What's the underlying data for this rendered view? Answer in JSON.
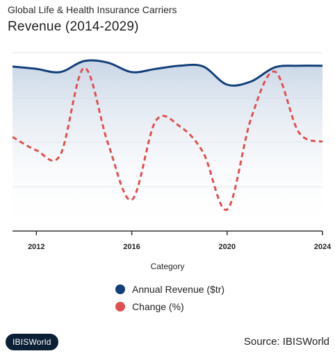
{
  "header": {
    "title": "Global Life & Health Insurance Carriers",
    "subtitle": "Revenue (2014-2029)"
  },
  "footer": {
    "logo_text": "IBISWorld",
    "source": "Source: IBISWorld"
  },
  "colors": {
    "revenue": "#123f7a",
    "change": "#e05050",
    "area_top": "#c9d6e6",
    "grid": "#dde3ea",
    "axis": "#333333"
  },
  "chart_data": {
    "type": "line",
    "title": "Revenue (2014-2029)",
    "xlabel": "Category",
    "ylabel": "",
    "xlim": [
      2011,
      2024
    ],
    "x_ticks": [
      "2012",
      "2016",
      "2020",
      "2024"
    ],
    "y_gridlines": 4,
    "legend_position": "bottom",
    "series": [
      {
        "name": "Annual Revenue ($tr)",
        "type": "area-line",
        "x": [
          2011,
          2012,
          2013,
          2014,
          2015,
          2016,
          2017,
          2018,
          2019,
          2020,
          2021,
          2022,
          2023,
          2024
        ],
        "values": [
          8.95,
          8.8,
          8.6,
          9.3,
          9.2,
          8.6,
          8.8,
          9.0,
          8.95,
          7.8,
          8.0,
          8.9,
          9.0,
          9.0
        ]
      },
      {
        "name": "Change (%)",
        "type": "dashed-line",
        "x": [
          2011,
          2012,
          2013,
          2014,
          2015,
          2016,
          2017,
          2018,
          2019,
          2020,
          2021,
          2022,
          2023,
          2024
        ],
        "values": [
          2.1,
          1.0,
          0.6,
          7.8,
          1.6,
          -3.1,
          3.4,
          3.0,
          0.8,
          -3.9,
          3.6,
          7.5,
          2.5,
          1.7
        ]
      }
    ]
  }
}
